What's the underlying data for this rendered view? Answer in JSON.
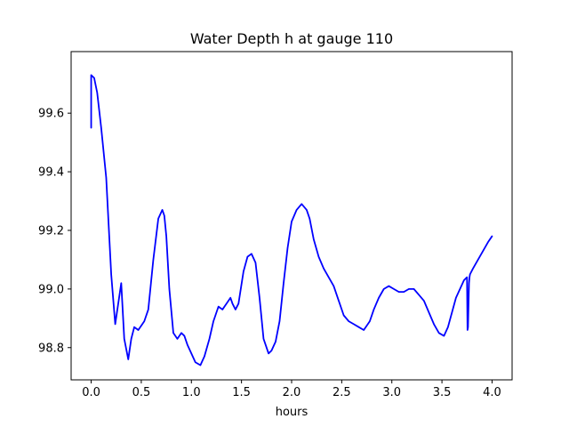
{
  "chart_data": {
    "type": "line",
    "title": "Water Depth h at gauge 110",
    "xlabel": "hours",
    "ylabel": "",
    "xlim": [
      -0.2,
      4.2
    ],
    "ylim": [
      98.69,
      99.81
    ],
    "xticks": [
      0.0,
      0.5,
      1.0,
      1.5,
      2.0,
      2.5,
      3.0,
      3.5,
      4.0
    ],
    "xtick_labels": [
      "0.0",
      "0.5",
      "1.0",
      "1.5",
      "2.0",
      "2.5",
      "3.0",
      "3.5",
      "4.0"
    ],
    "yticks": [
      98.8,
      99.0,
      99.2,
      99.4,
      99.6
    ],
    "ytick_labels": [
      "98.8",
      "99.0",
      "99.2",
      "99.4",
      "99.6"
    ],
    "grid": false,
    "legend": "none",
    "series": [
      {
        "color": "#0000ff",
        "x": [
          0.0,
          0.0,
          0.03,
          0.06,
          0.1,
          0.15,
          0.2,
          0.24,
          0.27,
          0.3,
          0.33,
          0.37,
          0.4,
          0.43,
          0.47,
          0.53,
          0.57,
          0.62,
          0.67,
          0.71,
          0.73,
          0.75,
          0.78,
          0.82,
          0.86,
          0.9,
          0.93,
          0.96,
          1.0,
          1.04,
          1.09,
          1.13,
          1.18,
          1.22,
          1.27,
          1.31,
          1.35,
          1.39,
          1.41,
          1.44,
          1.47,
          1.52,
          1.56,
          1.6,
          1.64,
          1.68,
          1.72,
          1.77,
          1.8,
          1.84,
          1.88,
          1.92,
          1.96,
          2.0,
          2.05,
          2.1,
          2.15,
          2.18,
          2.22,
          2.27,
          2.32,
          2.37,
          2.42,
          2.47,
          2.52,
          2.57,
          2.62,
          2.67,
          2.72,
          2.78,
          2.82,
          2.87,
          2.92,
          2.97,
          3.02,
          3.07,
          3.12,
          3.17,
          3.22,
          3.27,
          3.32,
          3.37,
          3.42,
          3.47,
          3.52,
          3.56,
          3.6,
          3.64,
          3.68,
          3.72,
          3.75,
          3.755,
          3.76,
          3.77,
          3.775,
          3.78,
          3.81,
          3.86,
          3.91,
          3.96,
          4.0
        ],
        "y": [
          99.55,
          99.73,
          99.72,
          99.67,
          99.55,
          99.38,
          99.05,
          98.88,
          98.95,
          99.02,
          98.83,
          98.76,
          98.83,
          98.87,
          98.86,
          98.89,
          98.93,
          99.1,
          99.24,
          99.27,
          99.25,
          99.18,
          99.0,
          98.85,
          98.83,
          98.85,
          98.84,
          98.81,
          98.78,
          98.75,
          98.74,
          98.77,
          98.83,
          98.89,
          98.94,
          98.93,
          98.95,
          98.97,
          98.95,
          98.93,
          98.95,
          99.06,
          99.11,
          99.12,
          99.09,
          98.97,
          98.83,
          98.78,
          98.79,
          98.82,
          98.89,
          99.02,
          99.14,
          99.23,
          99.27,
          99.29,
          99.27,
          99.24,
          99.17,
          99.11,
          99.07,
          99.04,
          99.01,
          98.96,
          98.91,
          98.89,
          98.88,
          98.87,
          98.86,
          98.89,
          98.93,
          98.97,
          99.0,
          99.01,
          99.0,
          98.99,
          98.99,
          99.0,
          99.0,
          98.98,
          98.96,
          98.92,
          98.88,
          98.85,
          98.84,
          98.87,
          98.92,
          98.97,
          99.0,
          99.03,
          99.04,
          98.86,
          98.87,
          99.02,
          99.04,
          99.05,
          99.07,
          99.1,
          99.13,
          99.16,
          99.18
        ]
      }
    ]
  }
}
